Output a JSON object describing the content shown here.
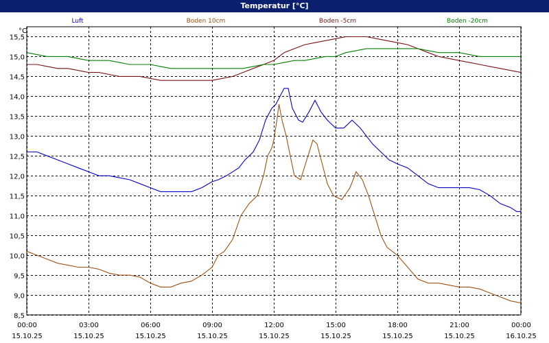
{
  "window": {
    "title": "Temperatur [°C]"
  },
  "chart_data": {
    "type": "line",
    "unit_label": "°C",
    "ylim": [
      8.5,
      15.75
    ],
    "y_ticks": [
      8.5,
      9.0,
      9.5,
      10.0,
      10.5,
      11.0,
      11.5,
      12.0,
      12.5,
      13.0,
      13.5,
      14.0,
      14.5,
      15.0,
      15.5
    ],
    "y_tick_labels": [
      "8,5",
      "9,0",
      "9,5",
      "10,0",
      "10,5",
      "11,0",
      "11,5",
      "12,0",
      "12,5",
      "13,0",
      "13,5",
      "14,0",
      "14,5",
      "15,0",
      "15,5"
    ],
    "xlim": [
      0,
      24
    ],
    "x_ticks": [
      {
        "t": 0,
        "time": "00:00",
        "date": "15.10.25"
      },
      {
        "t": 3,
        "time": "03:00",
        "date": "15.10.25"
      },
      {
        "t": 6,
        "time": "06:00",
        "date": "15.10.25"
      },
      {
        "t": 9,
        "time": "09:00",
        "date": "15.10.25"
      },
      {
        "t": 12,
        "time": "12:00",
        "date": "15.10.25"
      },
      {
        "t": 15,
        "time": "15:00",
        "date": "15.10.25"
      },
      {
        "t": 18,
        "time": "18:00",
        "date": "15.10.25"
      },
      {
        "t": 21,
        "time": "21:00",
        "date": "15.10.25"
      },
      {
        "t": 24,
        "time": "00:00",
        "date": "16.10.25"
      }
    ],
    "grid": true,
    "series": [
      {
        "name": "Luft",
        "color": "#0000cc",
        "points": [
          [
            0,
            12.6
          ],
          [
            0.5,
            12.6
          ],
          [
            1,
            12.5
          ],
          [
            1.5,
            12.4
          ],
          [
            2,
            12.3
          ],
          [
            2.5,
            12.2
          ],
          [
            3,
            12.1
          ],
          [
            3.5,
            12.0
          ],
          [
            4,
            12.0
          ],
          [
            4.5,
            11.95
          ],
          [
            5,
            11.9
          ],
          [
            5.5,
            11.8
          ],
          [
            6,
            11.7
          ],
          [
            6.5,
            11.6
          ],
          [
            7,
            11.6
          ],
          [
            7.5,
            11.6
          ],
          [
            8,
            11.6
          ],
          [
            8.5,
            11.7
          ],
          [
            9,
            11.85
          ],
          [
            9.3,
            11.9
          ],
          [
            9.7,
            12.0
          ],
          [
            10,
            12.1
          ],
          [
            10.3,
            12.2
          ],
          [
            10.6,
            12.4
          ],
          [
            11,
            12.6
          ],
          [
            11.3,
            12.9
          ],
          [
            11.6,
            13.4
          ],
          [
            11.9,
            13.7
          ],
          [
            12.1,
            13.8
          ],
          [
            12.3,
            14.0
          ],
          [
            12.5,
            14.2
          ],
          [
            12.7,
            14.2
          ],
          [
            12.9,
            13.7
          ],
          [
            13.2,
            13.4
          ],
          [
            13.4,
            13.35
          ],
          [
            13.7,
            13.6
          ],
          [
            14,
            13.9
          ],
          [
            14.3,
            13.6
          ],
          [
            14.6,
            13.4
          ],
          [
            15,
            13.2
          ],
          [
            15.4,
            13.2
          ],
          [
            15.8,
            13.4
          ],
          [
            16.2,
            13.2
          ],
          [
            16.5,
            13.0
          ],
          [
            16.8,
            12.8
          ],
          [
            17.2,
            12.6
          ],
          [
            17.6,
            12.4
          ],
          [
            18,
            12.3
          ],
          [
            18.5,
            12.2
          ],
          [
            19,
            12.0
          ],
          [
            19.5,
            11.8
          ],
          [
            20,
            11.7
          ],
          [
            20.5,
            11.7
          ],
          [
            21,
            11.7
          ],
          [
            21.5,
            11.7
          ],
          [
            22,
            11.65
          ],
          [
            22.5,
            11.5
          ],
          [
            23,
            11.3
          ],
          [
            23.5,
            11.2
          ],
          [
            23.8,
            11.1
          ],
          [
            24,
            11.1
          ]
        ]
      },
      {
        "name": "Boden 10cm",
        "color": "#a05010",
        "points": [
          [
            0,
            10.1
          ],
          [
            0.5,
            10.0
          ],
          [
            1,
            9.9
          ],
          [
            1.5,
            9.8
          ],
          [
            2,
            9.75
          ],
          [
            2.5,
            9.7
          ],
          [
            3,
            9.7
          ],
          [
            3.5,
            9.65
          ],
          [
            4,
            9.55
          ],
          [
            4.5,
            9.5
          ],
          [
            5,
            9.5
          ],
          [
            5.5,
            9.45
          ],
          [
            6,
            9.3
          ],
          [
            6.5,
            9.2
          ],
          [
            7,
            9.2
          ],
          [
            7.5,
            9.3
          ],
          [
            8,
            9.35
          ],
          [
            8.5,
            9.5
          ],
          [
            9,
            9.7
          ],
          [
            9.3,
            10.0
          ],
          [
            9.6,
            10.1
          ],
          [
            10,
            10.4
          ],
          [
            10.4,
            11.0
          ],
          [
            10.8,
            11.3
          ],
          [
            11.2,
            11.5
          ],
          [
            11.5,
            12.0
          ],
          [
            11.7,
            12.5
          ],
          [
            11.9,
            12.7
          ],
          [
            12.0,
            12.9
          ],
          [
            12.15,
            13.4
          ],
          [
            12.25,
            13.8
          ],
          [
            12.4,
            13.4
          ],
          [
            12.6,
            13.0
          ],
          [
            12.8,
            12.5
          ],
          [
            13.0,
            12.0
          ],
          [
            13.3,
            11.9
          ],
          [
            13.6,
            12.4
          ],
          [
            13.9,
            12.9
          ],
          [
            14.1,
            12.8
          ],
          [
            14.3,
            12.4
          ],
          [
            14.6,
            11.8
          ],
          [
            14.9,
            11.5
          ],
          [
            15.3,
            11.4
          ],
          [
            15.7,
            11.7
          ],
          [
            16.0,
            12.1
          ],
          [
            16.3,
            11.9
          ],
          [
            16.6,
            11.5
          ],
          [
            16.9,
            11.0
          ],
          [
            17.2,
            10.5
          ],
          [
            17.5,
            10.2
          ],
          [
            18,
            10.0
          ],
          [
            18.5,
            9.7
          ],
          [
            19,
            9.4
          ],
          [
            19.5,
            9.3
          ],
          [
            20,
            9.3
          ],
          [
            20.5,
            9.25
          ],
          [
            21,
            9.2
          ],
          [
            21.5,
            9.2
          ],
          [
            22,
            9.15
          ],
          [
            22.5,
            9.05
          ],
          [
            23,
            8.95
          ],
          [
            23.5,
            8.85
          ],
          [
            24,
            8.8
          ]
        ]
      },
      {
        "name": "Boden -5cm",
        "color": "#7a1010",
        "points": [
          [
            0,
            14.8
          ],
          [
            0.5,
            14.8
          ],
          [
            1,
            14.75
          ],
          [
            1.5,
            14.7
          ],
          [
            2,
            14.7
          ],
          [
            2.5,
            14.65
          ],
          [
            3,
            14.6
          ],
          [
            3.5,
            14.6
          ],
          [
            4,
            14.55
          ],
          [
            4.5,
            14.5
          ],
          [
            5,
            14.5
          ],
          [
            5.5,
            14.5
          ],
          [
            6,
            14.45
          ],
          [
            6.5,
            14.4
          ],
          [
            7,
            14.4
          ],
          [
            7.5,
            14.4
          ],
          [
            8,
            14.4
          ],
          [
            8.5,
            14.4
          ],
          [
            9,
            14.4
          ],
          [
            9.5,
            14.45
          ],
          [
            10,
            14.5
          ],
          [
            10.5,
            14.6
          ],
          [
            11,
            14.7
          ],
          [
            11.5,
            14.8
          ],
          [
            12,
            14.9
          ],
          [
            12.5,
            15.1
          ],
          [
            13,
            15.2
          ],
          [
            13.5,
            15.3
          ],
          [
            14,
            15.35
          ],
          [
            14.5,
            15.4
          ],
          [
            15,
            15.45
          ],
          [
            15.5,
            15.5
          ],
          [
            16,
            15.5
          ],
          [
            16.5,
            15.5
          ],
          [
            17,
            15.45
          ],
          [
            17.5,
            15.4
          ],
          [
            18,
            15.35
          ],
          [
            18.5,
            15.3
          ],
          [
            19,
            15.2
          ],
          [
            19.5,
            15.1
          ],
          [
            20,
            15.0
          ],
          [
            20.5,
            14.95
          ],
          [
            21,
            14.9
          ],
          [
            21.5,
            14.85
          ],
          [
            22,
            14.8
          ],
          [
            22.5,
            14.75
          ],
          [
            23,
            14.7
          ],
          [
            23.5,
            14.65
          ],
          [
            24,
            14.6
          ]
        ]
      },
      {
        "name": "Boden -20cm",
        "color": "#008000",
        "points": [
          [
            0,
            15.1
          ],
          [
            0.5,
            15.05
          ],
          [
            1,
            15.0
          ],
          [
            1.5,
            15.0
          ],
          [
            2,
            15.0
          ],
          [
            2.5,
            14.95
          ],
          [
            3,
            14.9
          ],
          [
            3.5,
            14.9
          ],
          [
            4,
            14.9
          ],
          [
            4.5,
            14.85
          ],
          [
            5,
            14.8
          ],
          [
            5.5,
            14.8
          ],
          [
            6,
            14.8
          ],
          [
            6.5,
            14.75
          ],
          [
            7,
            14.7
          ],
          [
            7.5,
            14.7
          ],
          [
            8,
            14.7
          ],
          [
            8.5,
            14.7
          ],
          [
            9,
            14.7
          ],
          [
            9.5,
            14.7
          ],
          [
            10,
            14.7
          ],
          [
            10.5,
            14.7
          ],
          [
            11,
            14.75
          ],
          [
            11.5,
            14.8
          ],
          [
            12,
            14.8
          ],
          [
            12.5,
            14.85
          ],
          [
            13,
            14.9
          ],
          [
            13.5,
            14.9
          ],
          [
            14,
            14.95
          ],
          [
            14.5,
            15.0
          ],
          [
            15,
            15.0
          ],
          [
            15.5,
            15.1
          ],
          [
            16,
            15.15
          ],
          [
            16.5,
            15.2
          ],
          [
            17,
            15.2
          ],
          [
            17.5,
            15.2
          ],
          [
            18,
            15.2
          ],
          [
            18.5,
            15.2
          ],
          [
            19,
            15.2
          ],
          [
            19.5,
            15.15
          ],
          [
            20,
            15.1
          ],
          [
            20.5,
            15.1
          ],
          [
            21,
            15.1
          ],
          [
            21.5,
            15.05
          ],
          [
            22,
            15.0
          ],
          [
            22.5,
            15.0
          ],
          [
            23,
            15.0
          ],
          [
            23.5,
            15.0
          ],
          [
            24,
            15.0
          ]
        ]
      }
    ]
  }
}
